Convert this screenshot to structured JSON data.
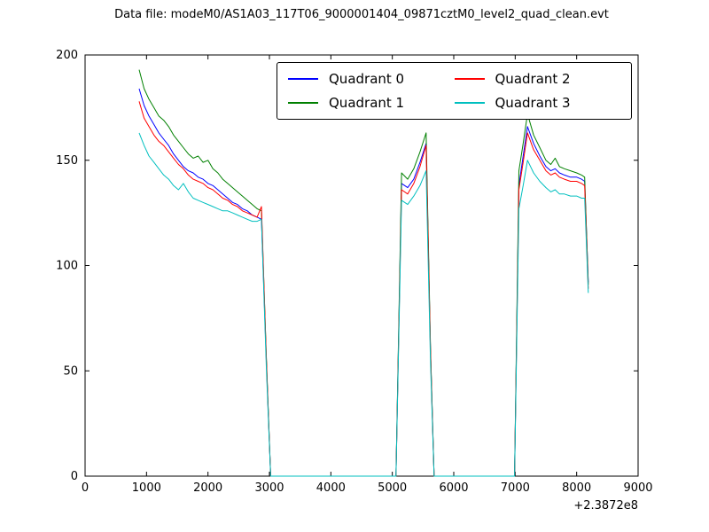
{
  "chart_data": {
    "type": "line",
    "title": "Data file: modeM0/AS1A03_117T06_9000001404_09871cztM0_level2_quad_clean.evt",
    "xlabel": "",
    "ylabel": "",
    "xlim": [
      0,
      9000
    ],
    "ylim": [
      0,
      200
    ],
    "x_ticks": [
      0,
      1000,
      2000,
      3000,
      4000,
      5000,
      6000,
      7000,
      8000,
      9000
    ],
    "y_ticks": [
      0,
      50,
      100,
      150,
      200
    ],
    "x_offset_label": "+2.3872e8",
    "grid": false,
    "legend_position": "upper center, 2 columns",
    "legend": [
      "Quadrant 0",
      "Quadrant 1",
      "Quadrant 2",
      "Quadrant 3"
    ],
    "colors": [
      "#0000ff",
      "#008000",
      "#ff0000",
      "#00bfbf"
    ],
    "x": [
      880,
      960,
      1040,
      1120,
      1200,
      1280,
      1360,
      1440,
      1520,
      1600,
      1680,
      1760,
      1840,
      1920,
      2000,
      2080,
      2160,
      2240,
      2320,
      2400,
      2480,
      2560,
      2640,
      2720,
      2800,
      2870,
      2950,
      3020,
      3200,
      3600,
      4000,
      4400,
      4800,
      5060,
      5150,
      5250,
      5350,
      5450,
      5550,
      5620,
      5680,
      6000,
      6400,
      6800,
      6990,
      7060,
      7130,
      7200,
      7300,
      7400,
      7500,
      7580,
      7650,
      7720,
      7800,
      7900,
      8000,
      8080,
      8130,
      8190
    ],
    "series": [
      {
        "name": "Quadrant 0",
        "values": [
          184,
          176,
          171,
          167,
          163,
          160,
          157,
          153,
          150,
          147,
          145,
          144,
          142,
          141,
          139,
          138,
          136,
          134,
          132,
          130,
          129,
          127,
          126,
          124,
          123,
          122,
          55,
          0,
          0,
          0,
          0,
          0,
          0,
          0,
          139,
          137,
          141,
          149,
          158,
          60,
          0,
          0,
          0,
          0,
          0,
          138,
          152,
          166,
          158,
          152,
          147,
          145,
          146,
          144,
          143,
          142,
          142,
          141,
          140,
          92
        ]
      },
      {
        "name": "Quadrant 1",
        "values": [
          193,
          184,
          179,
          175,
          171,
          169,
          166,
          162,
          159,
          156,
          153,
          151,
          152,
          149,
          150,
          146,
          144,
          141,
          139,
          137,
          135,
          133,
          131,
          129,
          127,
          126,
          57,
          0,
          0,
          0,
          0,
          0,
          0,
          0,
          144,
          141,
          146,
          154,
          163,
          62,
          0,
          0,
          0,
          0,
          0,
          145,
          158,
          172,
          162,
          156,
          150,
          148,
          151,
          147,
          146,
          145,
          144,
          143,
          142,
          91
        ]
      },
      {
        "name": "Quadrant 2",
        "values": [
          178,
          170,
          166,
          162,
          159,
          157,
          154,
          151,
          148,
          146,
          143,
          141,
          140,
          139,
          137,
          136,
          134,
          132,
          131,
          129,
          128,
          126,
          125,
          124,
          123,
          128,
          56,
          0,
          0,
          0,
          0,
          0,
          0,
          0,
          136,
          134,
          139,
          147,
          157,
          60,
          0,
          0,
          0,
          0,
          0,
          136,
          149,
          163,
          155,
          150,
          145,
          143,
          144,
          142,
          141,
          140,
          140,
          139,
          138,
          89
        ]
      },
      {
        "name": "Quadrant 3",
        "values": [
          163,
          157,
          152,
          149,
          146,
          143,
          141,
          138,
          136,
          139,
          135,
          132,
          131,
          130,
          129,
          128,
          127,
          126,
          126,
          125,
          124,
          123,
          122,
          121,
          121,
          122,
          52,
          0,
          0,
          0,
          0,
          0,
          0,
          0,
          131,
          129,
          133,
          138,
          145,
          55,
          0,
          0,
          0,
          0,
          0,
          127,
          138,
          150,
          144,
          140,
          137,
          135,
          136,
          134,
          134,
          133,
          133,
          132,
          132,
          87
        ]
      }
    ]
  }
}
